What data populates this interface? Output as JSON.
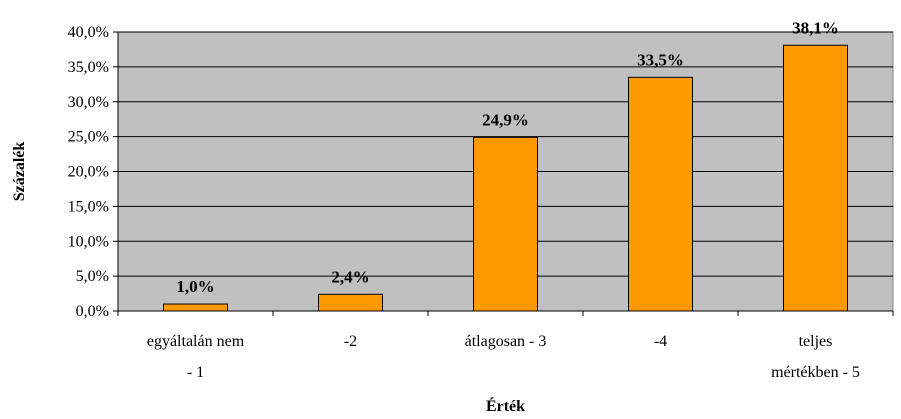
{
  "chart_data": {
    "type": "bar",
    "categories": [
      [
        "egyáltalán nem",
        "- 1"
      ],
      [
        "-2"
      ],
      [
        "átlagosan - 3"
      ],
      [
        "-4"
      ],
      [
        "teljes",
        "mértékben - 5"
      ]
    ],
    "values": [
      1.0,
      2.4,
      24.9,
      33.5,
      38.1
    ],
    "data_labels": [
      "1,0%",
      "2,4%",
      "24,9%",
      "33,5%",
      "38,1%"
    ],
    "y_ticks": [
      "0,0%",
      "5,0%",
      "10,0%",
      "15,0%",
      "20,0%",
      "25,0%",
      "30,0%",
      "35,0%",
      "40,0%"
    ],
    "ylim": [
      0,
      40
    ],
    "xlabel": "Érték",
    "ylabel": "Százalék",
    "grid": true,
    "colors": {
      "bar_fill": "#FF9900",
      "plot_background": "#C0C0C0",
      "gridline": "#000000"
    }
  }
}
